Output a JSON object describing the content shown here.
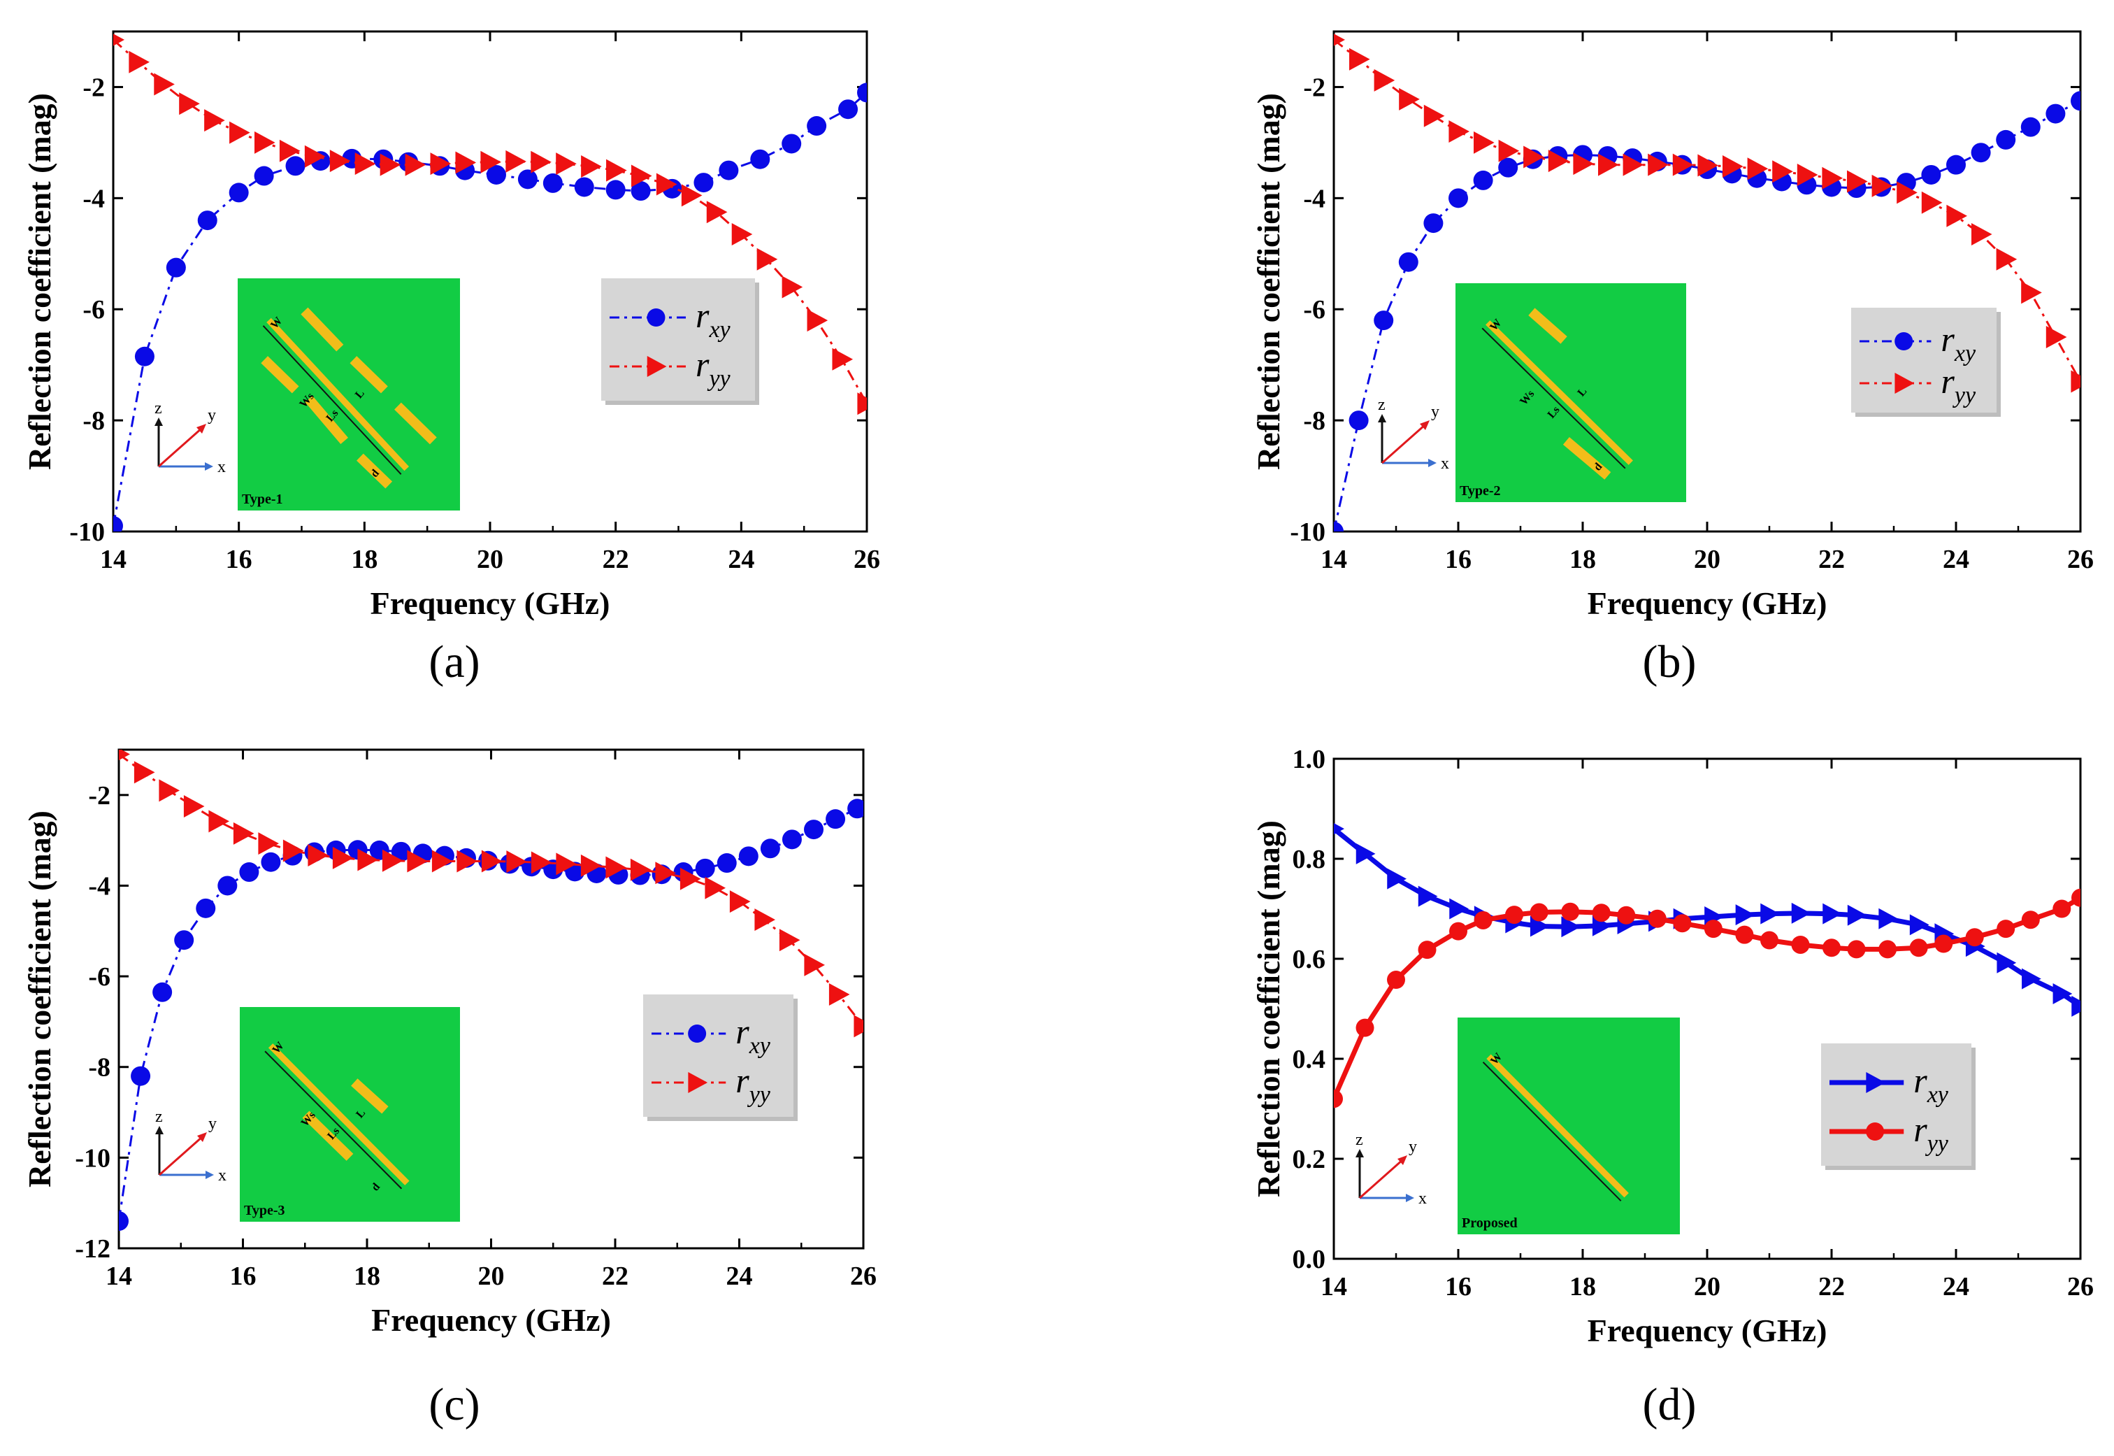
{
  "figure": {
    "panel_labels": [
      "(a)",
      "(b)",
      "(c)",
      "(d)"
    ]
  },
  "colors": {
    "rxy": "#0a0ae6",
    "ryy": "#ee1111",
    "inset_bg": "#12cc44",
    "strip": "#f2bd1a",
    "legend_bg": "#d6d6d6",
    "axis": "#000000"
  },
  "chart_data": [
    {
      "type": "line",
      "panel": "(a)",
      "xlabel": "Frequency (GHz)",
      "ylabel": "Reflection coefficient (mag)",
      "xlim": [
        14,
        26
      ],
      "ylim": [
        -10,
        -1
      ],
      "xticks": [
        14,
        16,
        18,
        20,
        22,
        24,
        26
      ],
      "yticks": [
        -10,
        -8,
        -6,
        -4,
        -2
      ],
      "line_style": "dashdot",
      "legend": {
        "position": "right-middle"
      },
      "inset_label": "Type-1",
      "inset_dims": [
        "W",
        "L",
        "Ws",
        "Ls",
        "d"
      ],
      "axes_letters": [
        "x",
        "y",
        "z"
      ],
      "series": [
        {
          "name": "r",
          "subscript": "xy",
          "marker": "circle",
          "color": "rxy",
          "x": [
            14.0,
            14.5,
            15.0,
            15.5,
            16.0,
            16.4,
            16.9,
            17.3,
            17.8,
            18.3,
            18.7,
            19.2,
            19.6,
            20.1,
            20.6,
            21.0,
            21.5,
            22.0,
            22.4,
            22.9,
            23.4,
            23.8,
            24.3,
            24.8,
            25.2,
            25.7,
            26.0
          ],
          "y": [
            -9.9,
            -6.85,
            -5.25,
            -4.4,
            -3.9,
            -3.6,
            -3.42,
            -3.33,
            -3.29,
            -3.3,
            -3.35,
            -3.42,
            -3.5,
            -3.58,
            -3.66,
            -3.73,
            -3.8,
            -3.85,
            -3.87,
            -3.83,
            -3.72,
            -3.5,
            -3.3,
            -3.02,
            -2.7,
            -2.4,
            -2.1
          ]
        },
        {
          "name": "r",
          "subscript": "yy",
          "marker": "triangle-right",
          "color": "ryy",
          "x": [
            14.0,
            14.4,
            14.8,
            15.2,
            15.6,
            16.0,
            16.4,
            16.8,
            17.2,
            17.6,
            18.0,
            18.4,
            18.8,
            19.2,
            19.6,
            20.0,
            20.4,
            20.8,
            21.2,
            21.6,
            22.0,
            22.4,
            22.8,
            23.2,
            23.6,
            24.0,
            24.4,
            24.8,
            25.2,
            25.6,
            26.0
          ],
          "y": [
            -1.15,
            -1.55,
            -1.95,
            -2.3,
            -2.6,
            -2.82,
            -3.0,
            -3.15,
            -3.25,
            -3.33,
            -3.38,
            -3.4,
            -3.4,
            -3.38,
            -3.36,
            -3.35,
            -3.34,
            -3.35,
            -3.38,
            -3.43,
            -3.5,
            -3.6,
            -3.75,
            -3.95,
            -4.25,
            -4.65,
            -5.1,
            -5.6,
            -6.2,
            -6.9,
            -7.7
          ]
        }
      ]
    },
    {
      "type": "line",
      "panel": "(b)",
      "xlabel": "Frequency (GHz)",
      "ylabel": "Reflection coefficient (mag)",
      "xlim": [
        14,
        26
      ],
      "ylim": [
        -10,
        -1
      ],
      "xticks": [
        14,
        16,
        18,
        20,
        22,
        24,
        26
      ],
      "yticks": [
        -10,
        -8,
        -6,
        -4,
        -2
      ],
      "line_style": "dashdot",
      "legend": {
        "position": "right-middle"
      },
      "inset_label": "Type-2",
      "inset_dims": [
        "W",
        "L",
        "Ws",
        "Ls",
        "d"
      ],
      "axes_letters": [
        "x",
        "y",
        "z"
      ],
      "series": [
        {
          "name": "r",
          "subscript": "xy",
          "marker": "circle",
          "color": "rxy",
          "x": [
            14.0,
            14.4,
            14.8,
            15.2,
            15.6,
            16.0,
            16.4,
            16.8,
            17.2,
            17.6,
            18.0,
            18.4,
            18.8,
            19.2,
            19.6,
            20.0,
            20.4,
            20.8,
            21.2,
            21.6,
            22.0,
            22.4,
            22.8,
            23.2,
            23.6,
            24.0,
            24.4,
            24.8,
            25.2,
            25.6,
            26.0
          ],
          "y": [
            -10.0,
            -8.0,
            -6.2,
            -5.15,
            -4.45,
            -4.0,
            -3.68,
            -3.45,
            -3.3,
            -3.24,
            -3.22,
            -3.24,
            -3.28,
            -3.34,
            -3.4,
            -3.48,
            -3.56,
            -3.64,
            -3.7,
            -3.76,
            -3.8,
            -3.82,
            -3.8,
            -3.72,
            -3.58,
            -3.4,
            -3.18,
            -2.95,
            -2.72,
            -2.48,
            -2.25
          ]
        },
        {
          "name": "r",
          "subscript": "yy",
          "marker": "triangle-right",
          "color": "ryy",
          "x": [
            14.0,
            14.4,
            14.8,
            15.2,
            15.6,
            16.0,
            16.4,
            16.8,
            17.2,
            17.6,
            18.0,
            18.4,
            18.8,
            19.2,
            19.6,
            20.0,
            20.4,
            20.8,
            21.2,
            21.6,
            22.0,
            22.4,
            22.8,
            23.2,
            23.6,
            24.0,
            24.4,
            24.8,
            25.2,
            25.6,
            26.0
          ],
          "y": [
            -1.15,
            -1.5,
            -1.88,
            -2.22,
            -2.52,
            -2.8,
            -3.0,
            -3.15,
            -3.26,
            -3.33,
            -3.38,
            -3.4,
            -3.4,
            -3.4,
            -3.4,
            -3.41,
            -3.43,
            -3.47,
            -3.52,
            -3.58,
            -3.64,
            -3.7,
            -3.78,
            -3.9,
            -4.08,
            -4.32,
            -4.65,
            -5.1,
            -5.7,
            -6.5,
            -7.3
          ]
        }
      ]
    },
    {
      "type": "line",
      "panel": "(c)",
      "xlabel": "Frequency (GHz)",
      "ylabel": "Reflection coefficient (mag)",
      "xlim": [
        14,
        26
      ],
      "ylim": [
        -12,
        -1
      ],
      "xticks": [
        14,
        16,
        18,
        20,
        22,
        24,
        26
      ],
      "yticks": [
        -12,
        -10,
        -8,
        -6,
        -4,
        -2
      ],
      "line_style": "dashdot",
      "legend": {
        "position": "right-middle"
      },
      "inset_label": "Type-3",
      "inset_dims": [
        "W",
        "L",
        "Ws",
        "Ls",
        "d"
      ],
      "axes_letters": [
        "x",
        "y",
        "z"
      ],
      "series": [
        {
          "name": "r",
          "subscript": "xy",
          "marker": "circle",
          "color": "rxy",
          "x": [
            14.0,
            14.35,
            14.7,
            15.05,
            15.4,
            15.75,
            16.1,
            16.45,
            16.8,
            17.15,
            17.5,
            17.85,
            18.2,
            18.55,
            18.9,
            19.25,
            19.6,
            19.95,
            20.3,
            20.65,
            21.0,
            21.35,
            21.7,
            22.05,
            22.4,
            22.75,
            23.1,
            23.45,
            23.8,
            24.15,
            24.5,
            24.85,
            25.2,
            25.55,
            25.9
          ],
          "y": [
            -11.4,
            -8.2,
            -6.35,
            -5.2,
            -4.5,
            -4.0,
            -3.7,
            -3.48,
            -3.34,
            -3.26,
            -3.22,
            -3.21,
            -3.22,
            -3.25,
            -3.29,
            -3.34,
            -3.39,
            -3.45,
            -3.52,
            -3.58,
            -3.64,
            -3.69,
            -3.73,
            -3.76,
            -3.77,
            -3.75,
            -3.7,
            -3.62,
            -3.5,
            -3.35,
            -3.18,
            -2.98,
            -2.76,
            -2.53,
            -2.3
          ]
        },
        {
          "name": "r",
          "subscript": "yy",
          "marker": "triangle-right",
          "color": "ryy",
          "x": [
            14.0,
            14.4,
            14.8,
            15.2,
            15.6,
            16.0,
            16.4,
            16.8,
            17.2,
            17.6,
            18.0,
            18.4,
            18.8,
            19.2,
            19.6,
            20.0,
            20.4,
            20.8,
            21.2,
            21.6,
            22.0,
            22.4,
            22.8,
            23.2,
            23.6,
            24.0,
            24.4,
            24.8,
            25.2,
            25.6,
            26.0
          ],
          "y": [
            -1.1,
            -1.5,
            -1.9,
            -2.25,
            -2.58,
            -2.85,
            -3.07,
            -3.23,
            -3.33,
            -3.39,
            -3.43,
            -3.45,
            -3.46,
            -3.46,
            -3.46,
            -3.46,
            -3.47,
            -3.49,
            -3.52,
            -3.56,
            -3.6,
            -3.65,
            -3.72,
            -3.85,
            -4.05,
            -4.35,
            -4.75,
            -5.2,
            -5.75,
            -6.4,
            -7.1
          ]
        }
      ]
    },
    {
      "type": "line",
      "panel": "(d)",
      "xlabel": "Frequency (GHz)",
      "ylabel": "Reflection coefficient (mag)",
      "xlim": [
        14,
        26
      ],
      "ylim": [
        0.0,
        1.0
      ],
      "xticks": [
        14,
        16,
        18,
        20,
        22,
        24,
        26
      ],
      "yticks": [
        0.0,
        0.2,
        0.4,
        0.6,
        0.8,
        1.0
      ],
      "ytick_labels": [
        "0.0",
        "0.2",
        "0.4",
        "0.6",
        "0.8",
        "1.0"
      ],
      "line_style": "solid",
      "legend": {
        "position": "right-middle"
      },
      "inset_label": "Proposed",
      "inset_dims": [
        "W"
      ],
      "axes_letters": [
        "x",
        "y",
        "z"
      ],
      "series": [
        {
          "name": "r",
          "subscript": "xy",
          "marker": "triangle-right",
          "color": "rxy",
          "x": [
            14.0,
            14.5,
            15.0,
            15.5,
            16.0,
            16.4,
            16.9,
            17.3,
            17.8,
            18.3,
            18.7,
            19.2,
            19.6,
            20.1,
            20.6,
            21.0,
            21.5,
            22.0,
            22.4,
            22.9,
            23.4,
            23.8,
            24.3,
            24.8,
            25.2,
            25.7,
            26.0
          ],
          "y": [
            0.86,
            0.81,
            0.76,
            0.725,
            0.7,
            0.685,
            0.672,
            0.665,
            0.664,
            0.666,
            0.67,
            0.675,
            0.68,
            0.684,
            0.688,
            0.69,
            0.691,
            0.69,
            0.687,
            0.68,
            0.668,
            0.65,
            0.625,
            0.592,
            0.56,
            0.53,
            0.505
          ]
        },
        {
          "name": "r",
          "subscript": "yy",
          "marker": "circle",
          "color": "ryy",
          "x": [
            14.0,
            14.5,
            15.0,
            15.5,
            16.0,
            16.4,
            16.9,
            17.3,
            17.8,
            18.3,
            18.7,
            19.2,
            19.6,
            20.1,
            20.6,
            21.0,
            21.5,
            22.0,
            22.4,
            22.9,
            23.4,
            23.8,
            24.3,
            24.8,
            25.2,
            25.7,
            26.0
          ],
          "y": [
            0.32,
            0.462,
            0.558,
            0.618,
            0.655,
            0.677,
            0.688,
            0.693,
            0.694,
            0.692,
            0.687,
            0.68,
            0.671,
            0.66,
            0.648,
            0.637,
            0.628,
            0.622,
            0.619,
            0.619,
            0.622,
            0.63,
            0.643,
            0.66,
            0.678,
            0.7,
            0.722
          ]
        }
      ]
    }
  ]
}
